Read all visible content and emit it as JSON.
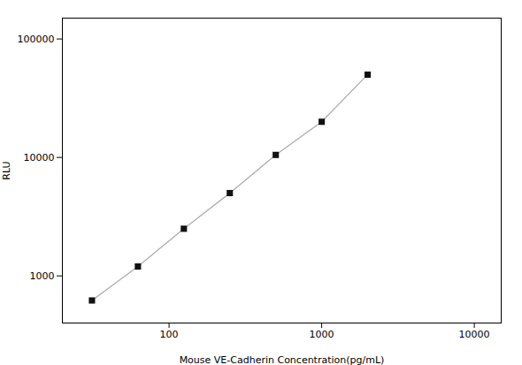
{
  "chart_data": {
    "type": "line",
    "x": [
      31.25,
      62.5,
      125,
      250,
      500,
      1000,
      2000
    ],
    "series": [
      {
        "type": "line",
        "color": "#aaaaaa",
        "values": [
          620,
          1200,
          2500,
          5000,
          10500,
          20000,
          50000
        ]
      },
      {
        "type": "scatter",
        "color": "#111111",
        "marker": "square",
        "values": [
          620,
          1200,
          2500,
          5000,
          10500,
          20000,
          50000
        ]
      }
    ],
    "xlabel": "Mouse VE-Cadherin Concentration(pg/mL)",
    "ylabel": "RLU",
    "log": true,
    "xlim": [
      20,
      15000
    ],
    "ylim": [
      400,
      150000
    ],
    "xticks": [
      100,
      1000,
      10000
    ],
    "yticks": [
      1000,
      10000,
      100000
    ],
    "grid": false
  }
}
